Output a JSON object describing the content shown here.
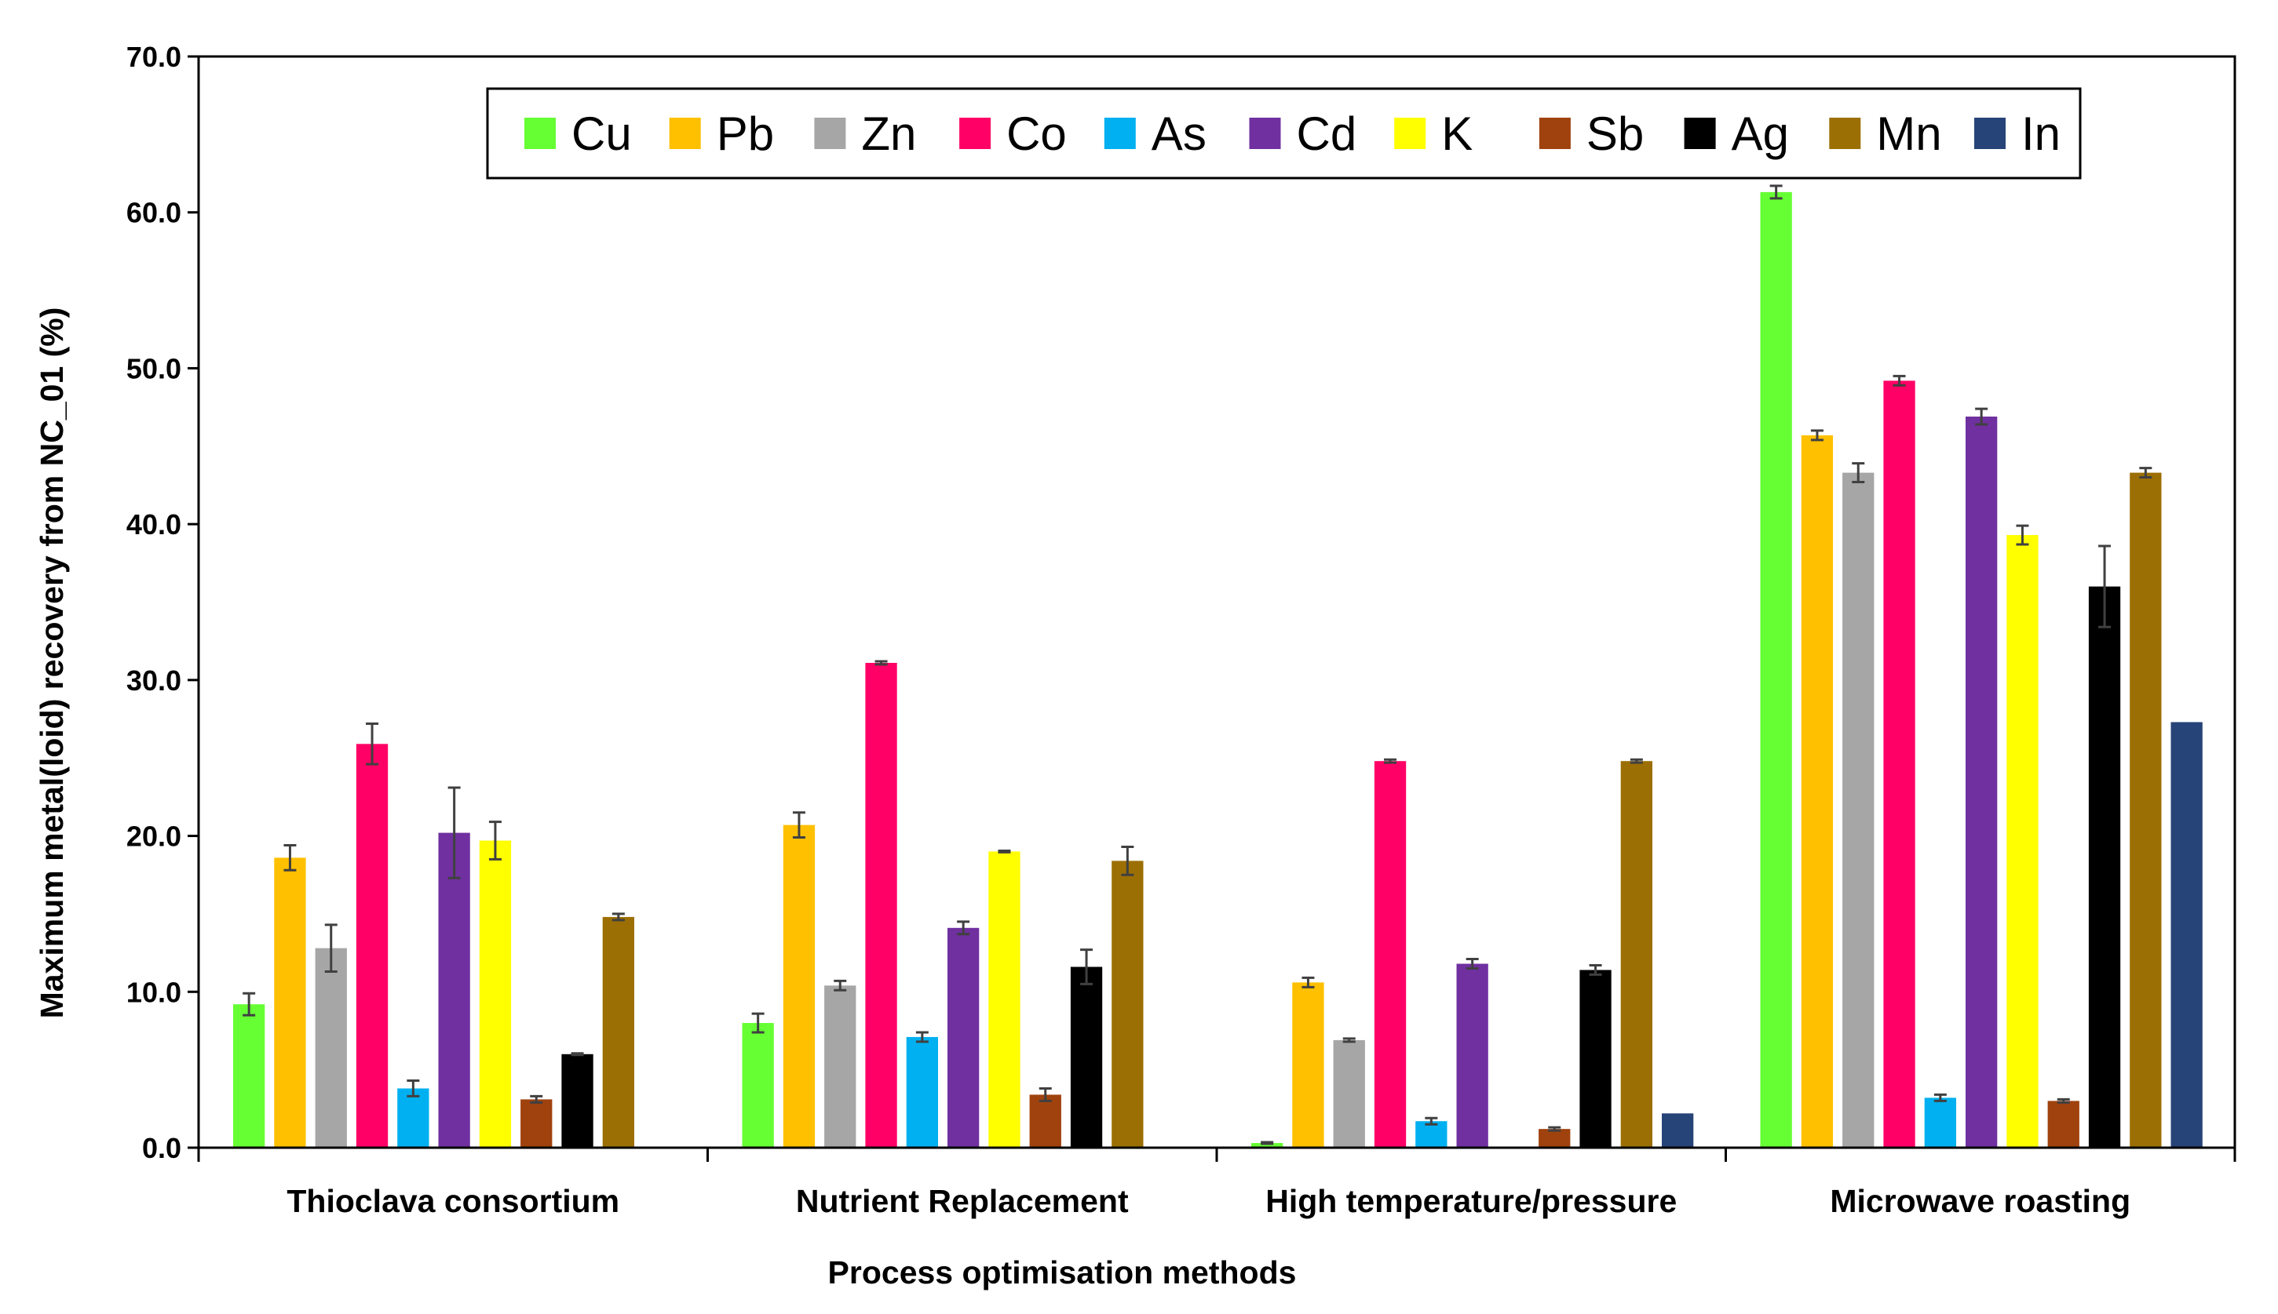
{
  "chart_data": {
    "type": "bar",
    "title": "",
    "xlabel": "Process optimisation methods",
    "ylabel": "Maximum metal(loid) recovery from NC_01 (%)",
    "ylim": [
      0,
      70
    ],
    "yticks": [
      0,
      10,
      20,
      30,
      40,
      50,
      60,
      70
    ],
    "ytick_labels": [
      "0.0",
      "10.0",
      "20.0",
      "30.0",
      "40.0",
      "50.0",
      "60.0",
      "70.0"
    ],
    "grid": false,
    "legend_position": "top",
    "categories": [
      "Thioclava consortium",
      "Nutrient Replacement",
      "High temperature/pressure",
      "Microwave roasting"
    ],
    "series": [
      {
        "name": "Cu",
        "color": "#66FF33",
        "values": [
          9.2,
          8.0,
          0.3,
          61.3
        ],
        "errors": [
          0.7,
          0.6,
          0.05,
          0.4
        ]
      },
      {
        "name": "Pb",
        "color": "#FFC000",
        "values": [
          18.6,
          20.7,
          10.6,
          45.7
        ],
        "errors": [
          0.8,
          0.8,
          0.3,
          0.3
        ]
      },
      {
        "name": "Zn",
        "color": "#A6A6A6",
        "values": [
          12.8,
          10.4,
          6.9,
          43.3
        ],
        "errors": [
          1.5,
          0.3,
          0.1,
          0.6
        ]
      },
      {
        "name": "Co",
        "color": "#FF0066",
        "values": [
          25.9,
          31.1,
          24.8,
          49.2
        ],
        "errors": [
          1.3,
          0.1,
          0.1,
          0.3
        ]
      },
      {
        "name": "As",
        "color": "#00B0F0",
        "values": [
          3.8,
          7.1,
          1.7,
          3.2
        ],
        "errors": [
          0.5,
          0.3,
          0.2,
          0.2
        ]
      },
      {
        "name": "Cd",
        "color": "#7030A0",
        "values": [
          20.2,
          14.1,
          11.8,
          46.9
        ],
        "errors": [
          2.9,
          0.4,
          0.3,
          0.5
        ]
      },
      {
        "name": "K",
        "color": "#FFFF00",
        "values": [
          19.7,
          19.0,
          null,
          39.3
        ],
        "errors": [
          1.2,
          0.05,
          0,
          0.6
        ]
      },
      {
        "name": "Sb",
        "color": "#A0420E",
        "values": [
          3.1,
          3.4,
          1.2,
          3.0
        ],
        "errors": [
          0.2,
          0.4,
          0.1,
          0.1
        ]
      },
      {
        "name": "Ag",
        "color": "#000000",
        "values": [
          6.0,
          11.6,
          11.4,
          36.0
        ],
        "errors": [
          0.05,
          1.1,
          0.3,
          2.6
        ]
      },
      {
        "name": "Mn",
        "color": "#9C6F04",
        "values": [
          14.8,
          18.4,
          24.8,
          43.3
        ],
        "errors": [
          0.2,
          0.9,
          0.1,
          0.3
        ]
      },
      {
        "name": "In",
        "color": "#264478",
        "values": [
          null,
          null,
          2.2,
          27.3
        ],
        "errors": [
          0,
          0,
          0,
          0
        ]
      }
    ]
  }
}
